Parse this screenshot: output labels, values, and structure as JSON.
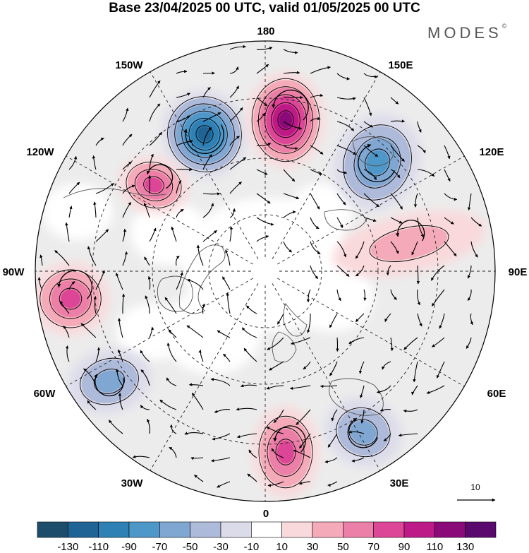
{
  "title": "Base 23/04/2025 00 UTC, valid 01/05/2025 00 UTC",
  "brand": {
    "name": "MODES",
    "mark": "©"
  },
  "map": {
    "projection": "north-polar-stereographic",
    "longitude_labels": [
      "180",
      "150E",
      "120E",
      "90E",
      "60E",
      "30E",
      "0",
      "30W",
      "60W",
      "90W",
      "120W",
      "150W"
    ],
    "anomalies": [
      {
        "kind": "negative",
        "value": -120,
        "label": "150W high-lat low"
      },
      {
        "kind": "positive",
        "value": 110,
        "label": "near 180"
      },
      {
        "kind": "negative",
        "value": -70,
        "label": "150E-120E"
      },
      {
        "kind": "positive",
        "value": 80,
        "label": "120W"
      },
      {
        "kind": "positive",
        "value": 80,
        "label": "90W"
      },
      {
        "kind": "negative",
        "value": -60,
        "label": "60W"
      },
      {
        "kind": "positive",
        "value": 80,
        "label": "0"
      },
      {
        "kind": "negative",
        "value": -60,
        "label": "30E"
      },
      {
        "kind": "positive",
        "value": 40,
        "label": "90E-120E"
      }
    ]
  },
  "vector_key": {
    "label": "10"
  },
  "colorbar": {
    "colors": [
      "#1e4d6b",
      "#1f6495",
      "#2f80b5",
      "#4d97c9",
      "#7fa7d2",
      "#aebad9",
      "#dcdbea",
      "#ffffff",
      "#f9d9dc",
      "#f4aab9",
      "#ec7fa7",
      "#dd4596",
      "#bd1a88",
      "#8b0a7a",
      "#5a0a6e"
    ],
    "tick_labels": [
      "-130",
      "-110",
      "-90",
      "-70",
      "-50",
      "-30",
      "-10",
      "10",
      "30",
      "50",
      "70",
      "90",
      "110",
      "130"
    ]
  }
}
